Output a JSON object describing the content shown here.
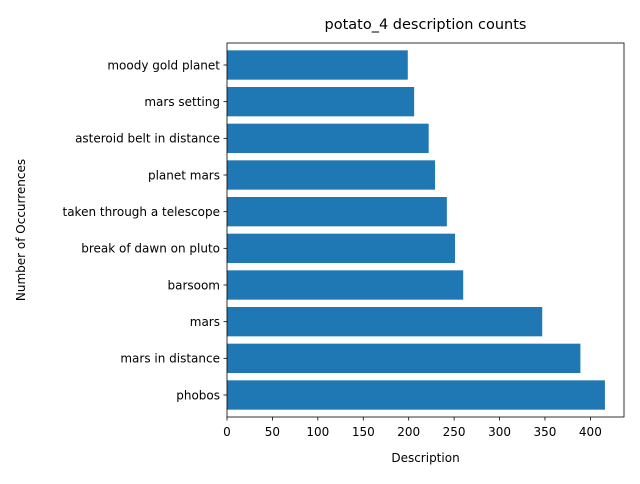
{
  "chart_data": {
    "type": "bar",
    "orientation": "horizontal",
    "title": "potato_4 description counts",
    "xlabel": "Description",
    "ylabel": "Number of Occurrences",
    "categories": [
      "phobos",
      "mars in distance",
      "mars",
      "barsoom",
      "break of dawn on pluto",
      "taken through a telescope",
      "planet mars",
      "asteroid belt in distance",
      "mars setting",
      "moody gold planet"
    ],
    "values": [
      416,
      389,
      347,
      260,
      251,
      242,
      229,
      222,
      206,
      199
    ],
    "xlim": [
      0,
      437
    ],
    "xticks": [
      0,
      50,
      100,
      150,
      200,
      250,
      300,
      350,
      400
    ],
    "xtick_labels": [
      "0",
      "50",
      "100",
      "150",
      "200",
      "250",
      "300",
      "350",
      "400"
    ],
    "grid": false,
    "legend": "none",
    "bar_color": "#1f77b4"
  }
}
